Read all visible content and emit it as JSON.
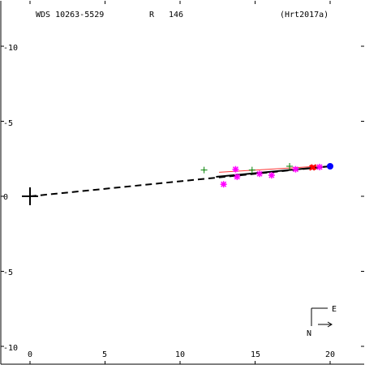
{
  "header": {
    "designation": "WDS 10263-5529",
    "method_code": "R",
    "position_angle_label": "146",
    "reference": "(Hrt2017a)"
  },
  "compass": {
    "north_label": "N",
    "east_label": "E"
  },
  "colors": {
    "axis": "#000000",
    "magenta_points": "#ff00ff",
    "green_points": "#008000",
    "red_points": "#ff0000",
    "blue_points": "#0000ff",
    "dashed_line": "#000000",
    "orbit_line": "#000000"
  },
  "chart_data": {
    "type": "scatter",
    "title": "",
    "xlabel": "",
    "ylabel": "",
    "xlim": [
      -2,
      22
    ],
    "ylim": [
      -11,
      12
    ],
    "x_ticks": [
      "0",
      "5",
      "10",
      "15",
      "20"
    ],
    "y_ticks": [
      "-10",
      "-5",
      "0",
      "-5",
      "-10"
    ],
    "primary": {
      "x": 0,
      "y": 0,
      "marker": "large-plus"
    },
    "series": [
      {
        "marker": "asterisk",
        "color": "magenta",
        "points": [
          [
            12.9,
            0.8
          ],
          [
            13.7,
            1.8
          ],
          [
            13.8,
            1.3
          ],
          [
            15.3,
            1.5
          ],
          [
            16.1,
            1.4
          ],
          [
            17.7,
            1.8
          ],
          [
            19.3,
            1.95
          ]
        ]
      },
      {
        "marker": "plus",
        "color": "green",
        "points": [
          [
            11.6,
            1.75
          ],
          [
            14.8,
            1.75
          ],
          [
            17.3,
            2.0
          ]
        ]
      },
      {
        "marker": "cross",
        "color": "red",
        "points": [
          [
            18.8,
            1.9
          ],
          [
            18.9,
            1.95
          ]
        ]
      },
      {
        "marker": "filled-circle",
        "color": "blue",
        "points": [
          [
            20.0,
            2.0
          ]
        ]
      }
    ],
    "lines": [
      {
        "style": "dashed",
        "from": [
          0,
          0
        ],
        "to": [
          20.0,
          2.0
        ]
      },
      {
        "style": "solid",
        "from": [
          12.4,
          1.3
        ],
        "to": [
          20.0,
          2.0
        ]
      },
      {
        "style": "solid-thin",
        "from": [
          12.6,
          1.6
        ],
        "to": [
          19.2,
          2.0
        ]
      }
    ]
  }
}
